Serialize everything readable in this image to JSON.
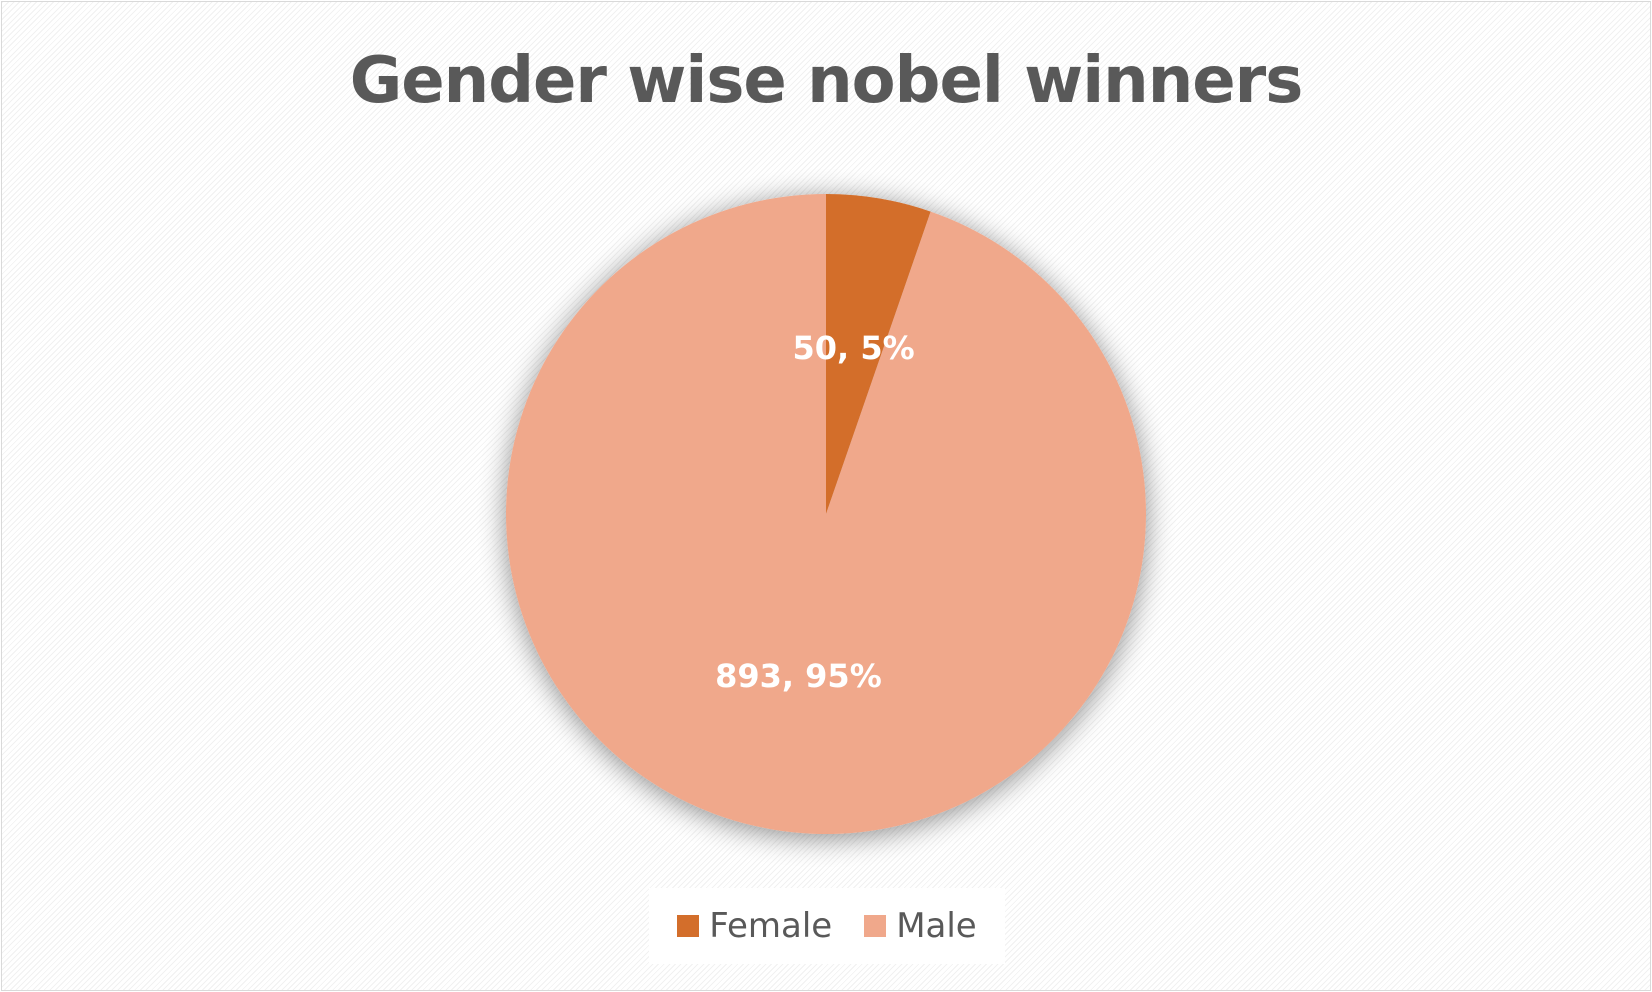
{
  "chart_data": {
    "type": "pie",
    "title": "Gender wise nobel winners",
    "slices": [
      {
        "label": "Female",
        "value": 50,
        "percent": 5,
        "data_label": "50, 5%",
        "color": "#d36e2b"
      },
      {
        "label": "Male",
        "value": 893,
        "percent": 95,
        "data_label": "893, 95%",
        "color": "#f0a88b"
      }
    ],
    "legend_position": "bottom",
    "data_label_color": "#ffffff"
  }
}
